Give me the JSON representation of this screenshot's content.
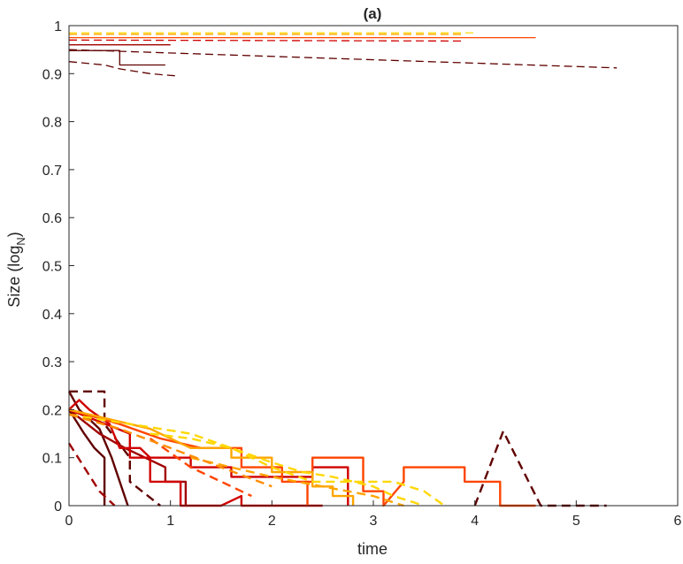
{
  "chart_data": {
    "type": "line",
    "title": "(a)",
    "xlabel": "time",
    "ylabel_main": "Size (log",
    "ylabel_sub": "N",
    "ylabel_close": ")",
    "xlim": [
      0,
      6
    ],
    "ylim": [
      0,
      1
    ],
    "xticks": [
      "0",
      "1",
      "2",
      "3",
      "4",
      "5",
      "6"
    ],
    "yticks": [
      "0",
      "0.1",
      "0.2",
      "0.3",
      "0.4",
      "0.5",
      "0.6",
      "0.7",
      "0.8",
      "0.9",
      "1"
    ],
    "grid": false,
    "legend": "none",
    "series": [
      {
        "color": "#ffd700",
        "style": "dashed",
        "thin": true,
        "x": [
          0,
          4.0
        ],
        "y": [
          0.985,
          0.985
        ]
      },
      {
        "color": "#ffa500",
        "style": "dashed",
        "thin": true,
        "x": [
          0,
          3.9
        ],
        "y": [
          0.982,
          0.982
        ]
      },
      {
        "color": "#ff4500",
        "style": "solid",
        "thin": true,
        "x": [
          0,
          4.6
        ],
        "y": [
          0.975,
          0.975
        ]
      },
      {
        "color": "#d00000",
        "style": "dashed",
        "thin": true,
        "x": [
          0,
          3.9
        ],
        "y": [
          0.97,
          0.968
        ]
      },
      {
        "color": "#a00000",
        "style": "solid",
        "thin": true,
        "x": [
          0,
          1.0
        ],
        "y": [
          0.96,
          0.96
        ]
      },
      {
        "color": "#600000",
        "style": "dashed",
        "thin": true,
        "x": [
          0,
          5.4
        ],
        "y": [
          0.95,
          0.912
        ]
      },
      {
        "color": "#600000",
        "style": "solid",
        "thin": true,
        "x": [
          0,
          0.5,
          0.5,
          0.95
        ],
        "y": [
          0.948,
          0.948,
          0.918,
          0.918
        ]
      },
      {
        "color": "#600000",
        "style": "dashed",
        "thin": true,
        "x": [
          0,
          0.35,
          0.5,
          0.65,
          0.8,
          0.95,
          1.08
        ],
        "y": [
          0.925,
          0.918,
          0.91,
          0.905,
          0.9,
          0.897,
          0.895
        ]
      },
      {
        "color": "#600000",
        "style": "dashed",
        "x": [
          0,
          0.35,
          0.35,
          0.6,
          0.6,
          0.9
        ],
        "y": [
          0.238,
          0.238,
          0.17,
          0.1,
          0.05,
          0
        ]
      },
      {
        "color": "#600000",
        "style": "solid",
        "x": [
          0,
          0.1,
          0.3,
          0.42,
          0.58
        ],
        "y": [
          0.238,
          0.2,
          0.16,
          0.1,
          0
        ]
      },
      {
        "color": "#600000",
        "style": "solid",
        "x": [
          0,
          0.15,
          0.25,
          0.35,
          0.35
        ],
        "y": [
          0.2,
          0.15,
          0.12,
          0.1,
          0
        ]
      },
      {
        "color": "#600000",
        "style": "dashed",
        "x": [
          4.0,
          4.28,
          4.65,
          5.3
        ],
        "y": [
          0,
          0.155,
          0,
          0
        ]
      },
      {
        "color": "#a00000",
        "style": "solid",
        "x": [
          0,
          0.3,
          0.55,
          0.75,
          0.95,
          0.95,
          1.15,
          1.15
        ],
        "y": [
          0.2,
          0.15,
          0.12,
          0.1,
          0.08,
          0.05,
          0.05,
          0
        ]
      },
      {
        "color": "#a00000",
        "style": "dashed",
        "x": [
          0,
          0.15,
          0.3,
          0.45
        ],
        "y": [
          0.13,
          0.08,
          0.03,
          0
        ]
      },
      {
        "color": "#d00000",
        "style": "solid",
        "x": [
          0,
          0.1,
          0.2,
          0.4,
          0.5,
          0.7,
          0.8,
          0.8,
          1.1,
          1.1,
          1.3,
          1.5,
          1.7,
          1.7,
          2.5
        ],
        "y": [
          0.2,
          0.22,
          0.2,
          0.17,
          0.12,
          0.12,
          0.1,
          0.05,
          0.05,
          0,
          0,
          0,
          0.02,
          0,
          0
        ]
      },
      {
        "color": "#d00000",
        "style": "solid",
        "x": [
          0,
          0.6,
          0.6,
          1.2,
          1.2,
          1.6,
          1.6,
          2.4,
          2.4,
          2.75,
          2.75
        ],
        "y": [
          0.2,
          0.15,
          0.1,
          0.1,
          0.08,
          0.08,
          0.06,
          0.06,
          0.08,
          0.08,
          0
        ]
      },
      {
        "color": "#ff4500",
        "style": "solid",
        "x": [
          2.35,
          2.4,
          2.4,
          2.9,
          2.9,
          3.1,
          3.1,
          3.3,
          3.3,
          3.9,
          3.9,
          4.25,
          4.25,
          4.6
        ],
        "y": [
          0.05,
          0.05,
          0.1,
          0.1,
          0.03,
          0.03,
          0,
          0.05,
          0.08,
          0.08,
          0.05,
          0.05,
          0,
          0
        ]
      },
      {
        "color": "#ff4500",
        "style": "solid",
        "x": [
          0,
          0.5,
          0.9,
          1.3,
          1.7,
          1.7,
          2.1,
          2.1,
          2.35,
          2.35
        ],
        "y": [
          0.2,
          0.17,
          0.14,
          0.12,
          0.12,
          0.08,
          0.08,
          0.05,
          0.05,
          0
        ]
      },
      {
        "color": "#ff4500",
        "style": "dashed",
        "x": [
          0.8,
          1.2,
          1.6,
          1.8
        ],
        "y": [
          0.14,
          0.08,
          0.04,
          0.02
        ]
      },
      {
        "color": "#ffa500",
        "style": "solid",
        "x": [
          0,
          0.8,
          1.2,
          1.6,
          1.6,
          2.0,
          2.0,
          2.4,
          2.4,
          2.6,
          2.6,
          2.8,
          2.8
        ],
        "y": [
          0.2,
          0.16,
          0.12,
          0.12,
          0.1,
          0.1,
          0.07,
          0.07,
          0.04,
          0.04,
          0.02,
          0.02,
          0
        ]
      },
      {
        "color": "#ffa500",
        "style": "dashed",
        "x": [
          1.2,
          1.6,
          2.0,
          2.5,
          3.0,
          3.3
        ],
        "y": [
          0.1,
          0.08,
          0.06,
          0.04,
          0.02,
          0
        ]
      },
      {
        "color": "#ffd700",
        "style": "dashed",
        "x": [
          0,
          0.3,
          0.6,
          0.9,
          1.2,
          1.6,
          2.0,
          2.3,
          2.6,
          3.0,
          3.2,
          3.5
        ],
        "y": [
          0.19,
          0.18,
          0.17,
          0.16,
          0.15,
          0.12,
          0.09,
          0.07,
          0.06,
          0.04,
          0.02,
          0
        ]
      },
      {
        "color": "#ffd700",
        "style": "dashed",
        "x": [
          0.8,
          1.2,
          1.6,
          2.0,
          2.4,
          2.8,
          3.2,
          3.5,
          3.7
        ],
        "y": [
          0.15,
          0.14,
          0.12,
          0.08,
          0.05,
          0.05,
          0.05,
          0.03,
          0
        ]
      },
      {
        "color": "#ff8c00",
        "style": "dashed",
        "x": [
          0,
          0.5,
          1.0,
          1.5,
          2.0
        ],
        "y": [
          0.19,
          0.16,
          0.12,
          0.08,
          0.04
        ]
      }
    ]
  }
}
